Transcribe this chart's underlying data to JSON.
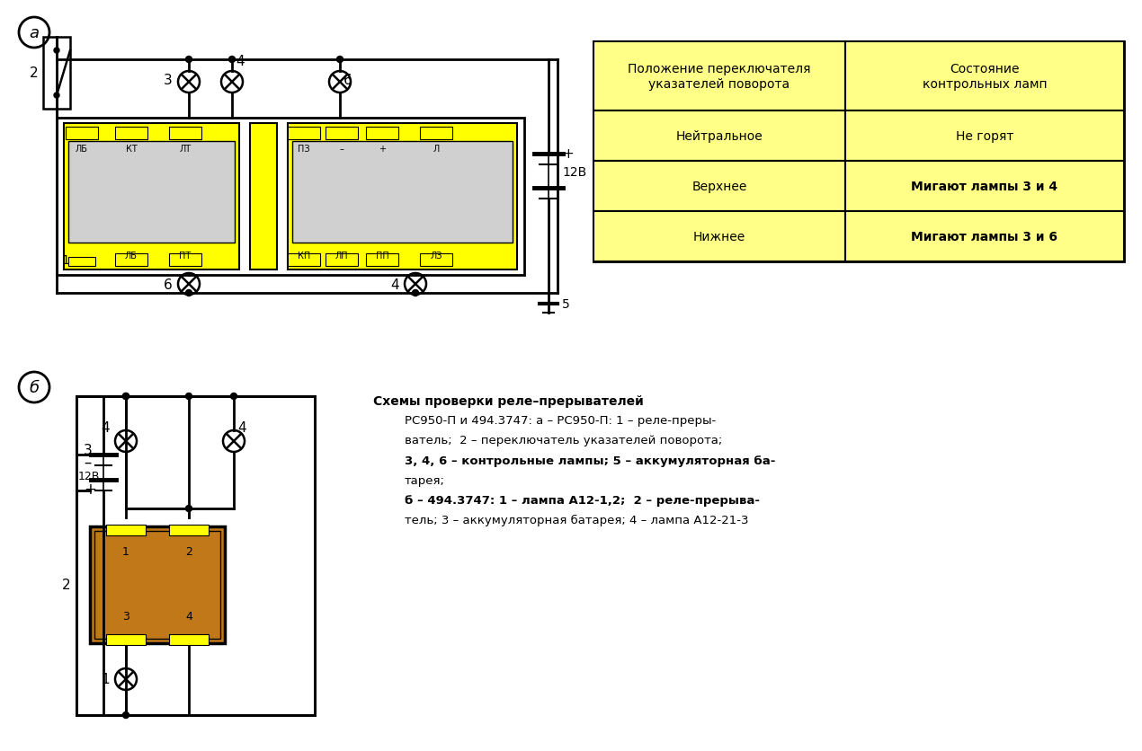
{
  "bg_color": "#ffffff",
  "table_bg": "#ffff88",
  "relay_yellow": "#ffff00",
  "relay_gray": "#d0d0d0",
  "relay_b_color": "#c07818",
  "table_rows": [
    [
      "Нейтральное",
      "Не горят"
    ],
    [
      "Верхнее",
      "Мигают лампы 3 и 4"
    ],
    [
      "Нижнее",
      "Мигают лампы 3 и 6"
    ]
  ],
  "bold_rows": [
    false,
    true,
    true
  ],
  "cap_title": "Схемы проверки реле–прерывателей",
  "cap_lines": [
    "РС950-П и 494.3747: а – РС950-П: 1 – реле-преры-",
    "ватель;  2 – переключатель указателей поворота;",
    "3, 4, 6 – контрольные лампы; 5 – аккумуляторная ба-",
    "тарея;",
    "б – 494.3747: 1 – лампа А12-1,2;  2 – реле-прерыва-",
    "тель; 3 – аккумуляторная батарея; 4 – лампа А12-21-3"
  ],
  "cap_bold": [
    false,
    false,
    true,
    false,
    true,
    false
  ],
  "left_pin_top": [
    "ЛБ",
    "КТ",
    "ЛТ"
  ],
  "left_pin_bot": [
    "ЛБ",
    "ПТ"
  ],
  "right_pin_top": [
    "ПЗ",
    "–",
    "+",
    "Л"
  ],
  "right_pin_bot": [
    "КП",
    "ЛП",
    "ПП",
    "ЛЗ"
  ]
}
